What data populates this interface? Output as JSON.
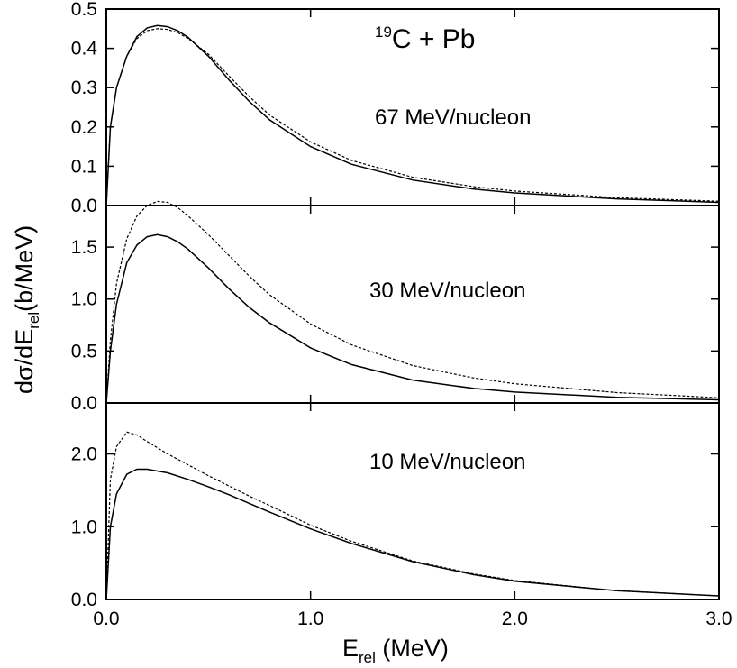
{
  "chart_data": {
    "type": "line",
    "title_parts": {
      "superscript": "19",
      "main": "C + Pb"
    },
    "xlabel_parts": {
      "main": "E",
      "subscript": "rel",
      "suffix": " (MeV)"
    },
    "ylabel_parts": {
      "prefix": "dσ/dE",
      "subscript": "rel",
      "suffix": "(b/MeV)"
    },
    "xlim": [
      0,
      3.0
    ],
    "x_ticks": [
      "0.0",
      "1.0",
      "2.0",
      "3.0"
    ],
    "x_tick_values": [
      0,
      1,
      2,
      3
    ],
    "grid": false,
    "panels": [
      {
        "annotation": "67 MeV/nucleon",
        "ylim": [
          0,
          0.5
        ],
        "y_ticks": [
          "0.0",
          "0.1",
          "0.2",
          "0.3",
          "0.4",
          "0.5"
        ],
        "y_tick_values": [
          0,
          0.1,
          0.2,
          0.3,
          0.4,
          0.5
        ],
        "series": [
          {
            "style": "solid",
            "x": [
              0,
              0.02,
              0.05,
              0.1,
              0.15,
              0.2,
              0.25,
              0.3,
              0.35,
              0.4,
              0.5,
              0.6,
              0.7,
              0.8,
              1.0,
              1.2,
              1.5,
              1.8,
              2.0,
              2.5,
              3.0
            ],
            "y": [
              0,
              0.2,
              0.3,
              0.38,
              0.43,
              0.452,
              0.458,
              0.455,
              0.445,
              0.428,
              0.38,
              0.32,
              0.265,
              0.218,
              0.15,
              0.105,
              0.065,
              0.042,
              0.032,
              0.017,
              0.008
            ]
          },
          {
            "style": "dashed",
            "x": [
              0,
              0.02,
              0.05,
              0.1,
              0.15,
              0.2,
              0.25,
              0.3,
              0.35,
              0.4,
              0.5,
              0.6,
              0.7,
              0.8,
              1.0,
              1.2,
              1.5,
              1.8,
              2.0,
              2.5,
              3.0
            ],
            "y": [
              0,
              0.2,
              0.3,
              0.38,
              0.425,
              0.445,
              0.45,
              0.448,
              0.44,
              0.425,
              0.385,
              0.33,
              0.277,
              0.23,
              0.162,
              0.115,
              0.072,
              0.048,
              0.037,
              0.02,
              0.011
            ]
          }
        ]
      },
      {
        "annotation": "30 MeV/nucleon",
        "ylim": [
          0,
          1.9
        ],
        "y_ticks": [
          "0.0",
          "0.5",
          "1.0",
          "1.5"
        ],
        "y_tick_values": [
          0,
          0.5,
          1.0,
          1.5
        ],
        "series": [
          {
            "style": "solid",
            "x": [
              0,
              0.02,
              0.05,
              0.1,
              0.15,
              0.2,
              0.25,
              0.3,
              0.35,
              0.4,
              0.5,
              0.6,
              0.7,
              0.8,
              1.0,
              1.2,
              1.5,
              1.8,
              2.0,
              2.5,
              3.0
            ],
            "y": [
              0,
              0.5,
              0.95,
              1.35,
              1.52,
              1.6,
              1.62,
              1.6,
              1.55,
              1.48,
              1.3,
              1.1,
              0.92,
              0.77,
              0.53,
              0.37,
              0.22,
              0.14,
              0.105,
              0.055,
              0.03
            ]
          },
          {
            "style": "dashed",
            "x": [
              0,
              0.02,
              0.05,
              0.1,
              0.15,
              0.2,
              0.25,
              0.3,
              0.35,
              0.4,
              0.5,
              0.6,
              0.7,
              0.8,
              1.0,
              1.2,
              1.5,
              1.8,
              2.0,
              2.5,
              3.0
            ],
            "y": [
              0,
              0.6,
              1.15,
              1.58,
              1.8,
              1.9,
              1.94,
              1.93,
              1.88,
              1.8,
              1.62,
              1.42,
              1.22,
              1.04,
              0.76,
              0.56,
              0.36,
              0.24,
              0.185,
              0.1,
              0.05
            ]
          }
        ]
      },
      {
        "annotation": "10 MeV/nucleon",
        "ylim": [
          0,
          2.7
        ],
        "y_ticks": [
          "0.0",
          "1.0",
          "2.0"
        ],
        "y_tick_values": [
          0,
          1.0,
          2.0
        ],
        "series": [
          {
            "style": "solid",
            "x": [
              0,
              0.02,
              0.05,
              0.1,
              0.15,
              0.2,
              0.3,
              0.4,
              0.5,
              0.6,
              0.7,
              0.8,
              1.0,
              1.2,
              1.5,
              1.8,
              2.0,
              2.5,
              3.0
            ],
            "y": [
              0,
              1.0,
              1.45,
              1.72,
              1.79,
              1.79,
              1.74,
              1.65,
              1.55,
              1.44,
              1.32,
              1.2,
              0.97,
              0.77,
              0.52,
              0.34,
              0.25,
              0.12,
              0.05
            ]
          },
          {
            "style": "dashed",
            "x": [
              0,
              0.02,
              0.05,
              0.1,
              0.15,
              0.2,
              0.3,
              0.4,
              0.5,
              0.6,
              0.7,
              0.8,
              1.0,
              1.2,
              1.5,
              1.8,
              2.0,
              2.5,
              3.0
            ],
            "y": [
              0,
              1.65,
              2.1,
              2.3,
              2.26,
              2.17,
              2.0,
              1.85,
              1.7,
              1.56,
              1.42,
              1.29,
              1.02,
              0.8,
              0.53,
              0.35,
              0.26,
              0.12,
              0.05
            ]
          }
        ]
      }
    ]
  }
}
